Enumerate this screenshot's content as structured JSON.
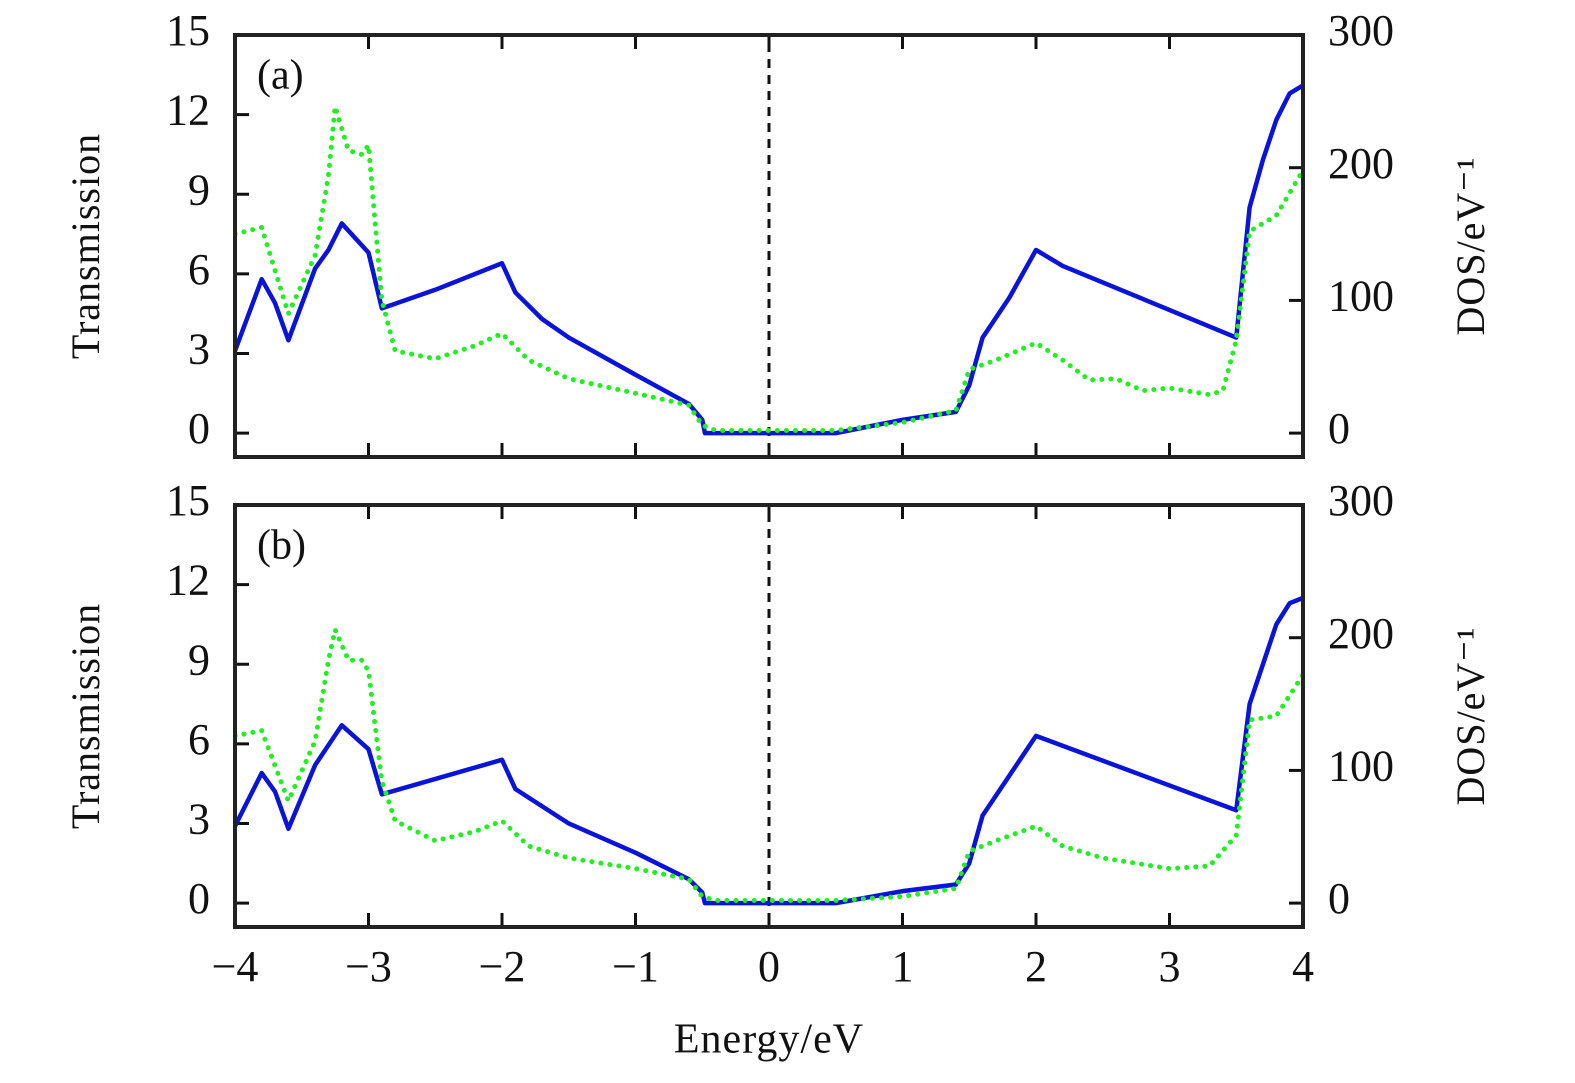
{
  "chart_data": [
    {
      "type": "line",
      "annotation": "(a)",
      "ylabel": "Transmission",
      "y2label": "DOS/eV⁻¹",
      "xlim": [
        -4,
        4
      ],
      "xticks": [
        -4,
        -3,
        -2,
        -1,
        0,
        1,
        2,
        3,
        4
      ],
      "ylim": [
        -0.9,
        15
      ],
      "yticks": [
        0,
        3,
        6,
        9,
        12,
        15
      ],
      "y2lim": [
        -18,
        300
      ],
      "y2ticks": [
        0,
        100,
        200,
        300
      ],
      "vline": 0,
      "series": [
        {
          "color": "#0a14d8",
          "style": "solid",
          "x": [
            -4,
            -3.8,
            -3.7,
            -3.6,
            -3.4,
            -3.3,
            -3.2,
            -3.0,
            -2.9,
            -2.5,
            -2.0,
            -1.9,
            -1.7,
            -1.5,
            -1.0,
            -0.6,
            -0.5,
            -0.48,
            0.5,
            1.0,
            1.4,
            1.5,
            1.6,
            1.8,
            2.0,
            2.2,
            3.5,
            3.6,
            3.7,
            3.8,
            3.9,
            4.0
          ],
          "values": [
            3.1,
            5.8,
            4.9,
            3.5,
            6.2,
            6.9,
            7.9,
            6.8,
            4.7,
            5.4,
            6.4,
            5.3,
            4.3,
            3.6,
            2.2,
            1.1,
            0.5,
            0,
            0,
            0.5,
            0.8,
            1.8,
            3.6,
            5.1,
            6.9,
            6.3,
            3.6,
            8.5,
            10.3,
            11.8,
            12.8,
            13.1
          ]
        },
        {
          "color": "#22ee22",
          "style": "dotted",
          "axis": "y2",
          "x": [
            -4,
            -3.8,
            -3.6,
            -3.4,
            -3.3,
            -3.25,
            -3.15,
            -3.05,
            -3.0,
            -2.9,
            -2.8,
            -2.5,
            -2.2,
            -2.0,
            -1.8,
            -1.5,
            -1.0,
            -0.6,
            -0.5,
            -0.4,
            0.5,
            1.0,
            1.4,
            1.5,
            1.7,
            2.0,
            2.2,
            2.4,
            2.6,
            2.8,
            3.0,
            3.3,
            3.4,
            3.5,
            3.6,
            3.8,
            4.0
          ],
          "values": [
            150,
            155,
            90,
            134,
            194,
            246,
            213,
            210,
            217,
            100,
            62,
            56,
            66,
            75,
            55,
            41,
            30,
            21,
            6,
            2,
            2,
            8,
            17,
            48,
            55,
            68,
            55,
            40,
            41,
            32,
            34,
            29,
            32,
            70,
            152,
            164,
            198
          ]
        }
      ]
    },
    {
      "type": "line",
      "annotation": "(b)",
      "ylabel": "Transmission",
      "y2label": "DOS/eV⁻¹",
      "xlabel": "Energy/eV",
      "xlim": [
        -4,
        4
      ],
      "xticks": [
        {
          "value": -4,
          "label": "−4"
        },
        {
          "value": -3,
          "label": "−3"
        },
        {
          "value": -2,
          "label": "−2"
        },
        {
          "value": -1,
          "label": "−1"
        },
        0,
        1,
        2,
        3,
        4
      ],
      "ylim": [
        -0.9,
        15
      ],
      "yticks": [
        0,
        3,
        6,
        9,
        12,
        15
      ],
      "y2lim": [
        -18,
        300
      ],
      "y2ticks": [
        0,
        100,
        200,
        300
      ],
      "vline": 0,
      "series": [
        {
          "color": "#0a14d8",
          "style": "solid",
          "x": [
            -4,
            -3.8,
            -3.7,
            -3.6,
            -3.4,
            -3.2,
            -3.0,
            -2.9,
            -2.0,
            -1.9,
            -1.5,
            -1.0,
            -0.6,
            -0.5,
            -0.48,
            0.5,
            1.0,
            1.4,
            1.5,
            1.6,
            1.8,
            2.0,
            3.5,
            3.6,
            3.7,
            3.8,
            3.9,
            4.0
          ],
          "values": [
            2.9,
            4.9,
            4.2,
            2.8,
            5.2,
            6.7,
            5.8,
            4.1,
            5.4,
            4.3,
            3.0,
            1.9,
            0.9,
            0.4,
            0,
            0,
            0.45,
            0.7,
            1.5,
            3.3,
            4.8,
            6.3,
            3.5,
            7.5,
            9.0,
            10.5,
            11.3,
            11.5
          ]
        },
        {
          "color": "#22ee22",
          "style": "dotted",
          "axis": "y2",
          "x": [
            -4,
            -3.8,
            -3.6,
            -3.4,
            -3.3,
            -3.25,
            -3.15,
            -3.05,
            -3.0,
            -2.9,
            -2.8,
            -2.5,
            -2.2,
            -2.0,
            -1.8,
            -1.5,
            -1.0,
            -0.6,
            -0.5,
            -0.4,
            0.5,
            1.0,
            1.4,
            1.5,
            1.7,
            2.0,
            2.2,
            2.5,
            3.0,
            3.3,
            3.5,
            3.6,
            3.8,
            4.0
          ],
          "values": [
            126,
            130,
            77,
            122,
            183,
            206,
            183,
            183,
            175,
            92,
            62,
            47,
            54,
            62,
            43,
            34,
            26,
            18,
            5,
            2,
            2,
            5,
            11,
            39,
            47,
            58,
            43,
            34,
            26,
            28,
            51,
            138,
            141,
            172
          ]
        }
      ]
    }
  ]
}
